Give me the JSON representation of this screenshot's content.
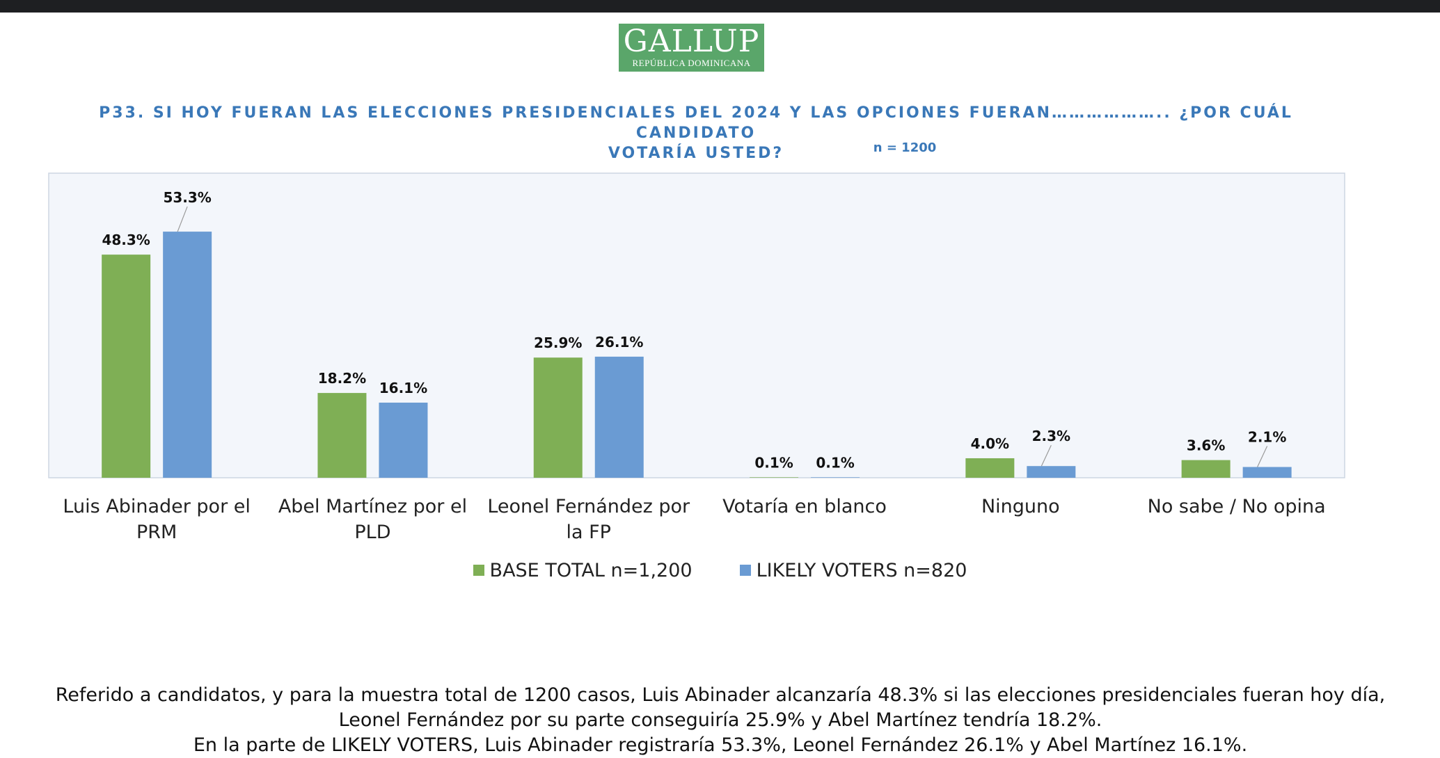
{
  "logo": {
    "name": "GALLUP",
    "subtitle": "REPÚBLICA DOMINICANA"
  },
  "question": {
    "line1": "P33.  SI HOY FUERAN LAS ELECCIONES PRESIDENCIALES DEL 2024 Y LAS OPCIONES FUERAN……………….. ¿POR CUÁL CANDIDATO",
    "line2": "VOTARÍA USTED?",
    "sample": "n = 1200"
  },
  "chart_data": {
    "type": "bar",
    "title": "P33. SI HOY FUERAN LAS ELECCIONES PRESIDENCIALES DEL 2024 Y LAS OPCIONES FUERAN……………….. ¿POR CUÁL CANDIDATO VOTARÍA USTED?",
    "categories": [
      [
        "Luis Abinader por el",
        "PRM"
      ],
      [
        "Abel Martínez por el",
        "PLD"
      ],
      [
        "Leonel Fernández por",
        "la FP"
      ],
      [
        "Votaría en blanco"
      ],
      [
        "Ninguno"
      ],
      [
        "No sabe / No opina"
      ]
    ],
    "series": [
      {
        "name": "BASE TOTAL n=1,200",
        "color": "#7faf55",
        "values": [
          48.3,
          18.2,
          25.9,
          0.1,
          4.0,
          3.6
        ],
        "labels": [
          "48.3%",
          "18.2%",
          "25.9%",
          "0.1%",
          "4.0%",
          "3.6%"
        ]
      },
      {
        "name": "LIKELY VOTERS n=820",
        "color": "#6a9bd3",
        "values": [
          53.3,
          16.1,
          26.1,
          0.1,
          2.3,
          2.1
        ],
        "labels": [
          "53.3%",
          "16.1%",
          "26.1%",
          "0.1%",
          "2.3%",
          "2.1%"
        ]
      }
    ],
    "ylim": [
      0,
      60
    ],
    "grid": false,
    "legend": "bottom",
    "xlabel": "",
    "ylabel": ""
  },
  "legend": {
    "base_label": "BASE TOTAL n=1,200",
    "likely_label": "LIKELY VOTERS n=820",
    "base_color": "#7faf55",
    "likely_color": "#6a9bd3"
  },
  "summary": {
    "line1": "Referido a candidatos, y para la muestra total de 1200 casos, Luis Abinader alcanzaría 48.3% si las elecciones presidenciales fueran hoy día,",
    "line2": "Leonel Fernández por su parte conseguiría 25.9% y Abel Martínez tendría 18.2%.",
    "line3": "En la parte de LIKELY VOTERS, Luis Abinader registraría 53.3%, Leonel Fernández 26.1% y Abel Martínez 16.1%."
  }
}
